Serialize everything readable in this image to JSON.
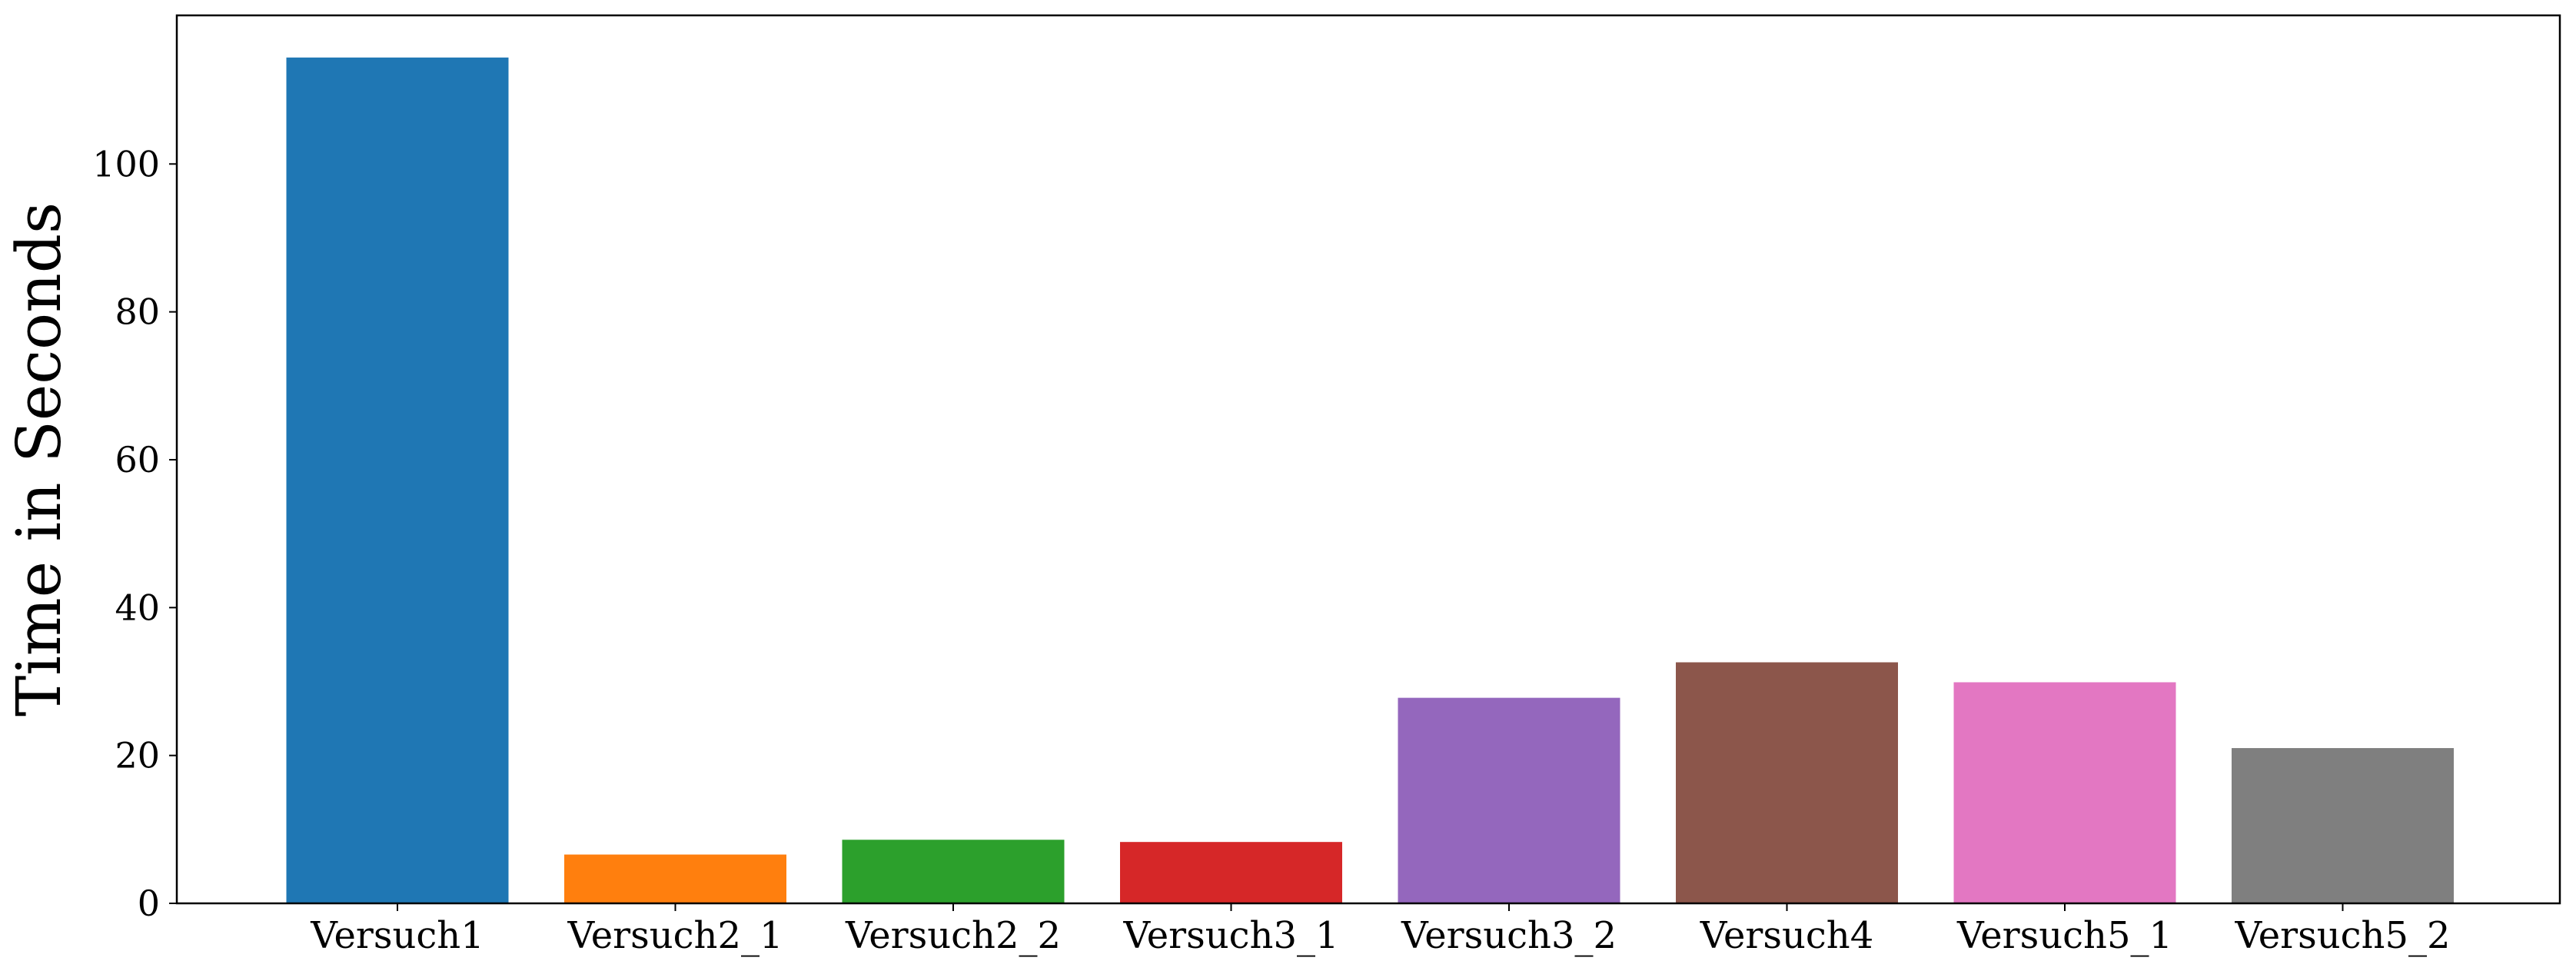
{
  "chart_data": {
    "type": "bar",
    "title": "",
    "xlabel": "",
    "ylabel": "Time in Seconds",
    "categories": [
      "Versuch1",
      "Versuch2_1",
      "Versuch2_2",
      "Versuch3_1",
      "Versuch3_2",
      "Versuch4",
      "Versuch5_1",
      "Versuch5_2"
    ],
    "values": [
      114.4,
      6.6,
      8.6,
      8.3,
      27.8,
      32.6,
      29.9,
      21.0
    ],
    "colors": [
      "#1f77b4",
      "#ff7f0e",
      "#2ca02c",
      "#d62728",
      "#9467bd",
      "#8c564b",
      "#e377c2",
      "#7f7f7f"
    ],
    "yticks": [
      0,
      20,
      40,
      60,
      80,
      100
    ],
    "ylim": [
      0,
      120.1
    ],
    "grid": false,
    "legend": "none"
  }
}
